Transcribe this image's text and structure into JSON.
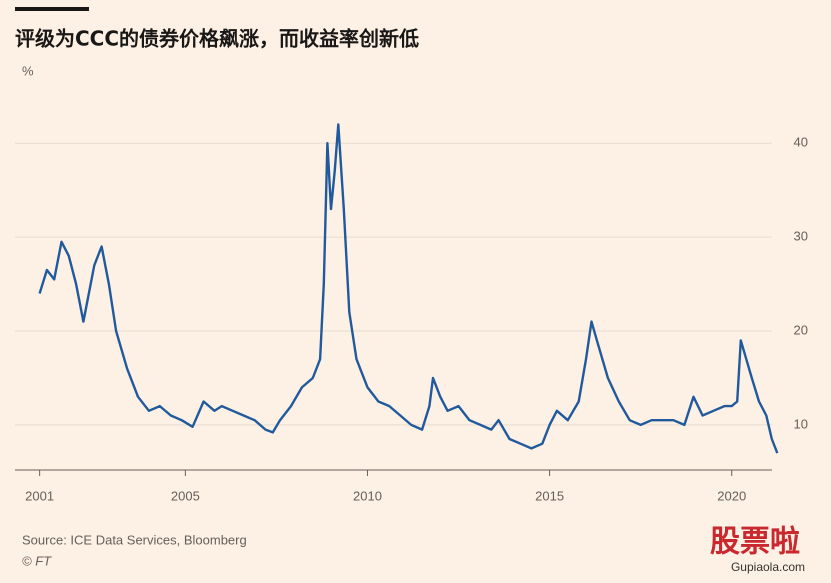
{
  "chart_data": {
    "type": "line",
    "title": "评级为CCC的债券价格飙涨，而收益率创新低",
    "y_unit": "%",
    "source": "Source: ICE Data Services, Bloomberg",
    "credit": "© FT",
    "watermark": {
      "logo": "股票啦",
      "url": "Gupiaola.com"
    },
    "xlim": [
      2000.9,
      2021.6
    ],
    "xticks": [
      2001,
      2005,
      2010,
      2015,
      2020
    ],
    "ylim": [
      5.2,
      46.2
    ],
    "yticks": [
      10,
      20,
      30,
      40
    ],
    "grid": true,
    "x": [
      2001.0,
      2001.2,
      2001.4,
      2001.6,
      2001.8,
      2002.0,
      2002.2,
      2002.5,
      2002.7,
      2002.9,
      2003.1,
      2003.4,
      2003.7,
      2004.0,
      2004.3,
      2004.6,
      2004.9,
      2005.2,
      2005.5,
      2005.8,
      2006.0,
      2006.3,
      2006.6,
      2006.9,
      2007.2,
      2007.4,
      2007.6,
      2007.9,
      2008.2,
      2008.5,
      2008.7,
      2008.8,
      2008.9,
      2009.0,
      2009.1,
      2009.2,
      2009.35,
      2009.5,
      2009.7,
      2010.0,
      2010.3,
      2010.6,
      2010.9,
      2011.2,
      2011.5,
      2011.7,
      2011.8,
      2012.0,
      2012.2,
      2012.5,
      2012.8,
      2013.1,
      2013.4,
      2013.6,
      2013.9,
      2014.2,
      2014.5,
      2014.8,
      2015.0,
      2015.2,
      2015.5,
      2015.8,
      2016.0,
      2016.15,
      2016.3,
      2016.6,
      2016.9,
      2017.2,
      2017.5,
      2017.8,
      2018.1,
      2018.4,
      2018.7,
      2018.95,
      2019.2,
      2019.5,
      2019.8,
      2020.0,
      2020.15,
      2020.25,
      2020.4,
      2020.55,
      2020.75,
      2020.95,
      2021.1,
      2021.25
    ],
    "series": [
      {
        "color": "#215a9c",
        "values": [
          24,
          26.5,
          25.5,
          29.5,
          28,
          25,
          21,
          27,
          29,
          25,
          20,
          16,
          13,
          11.5,
          12,
          11,
          10.5,
          9.8,
          12.5,
          11.5,
          12,
          11.5,
          11,
          10.5,
          9.5,
          9.2,
          10.5,
          12,
          14,
          15,
          17,
          25,
          40,
          33,
          37,
          42,
          33,
          22,
          17,
          14,
          12.5,
          12,
          11,
          10,
          9.5,
          12,
          15,
          13,
          11.5,
          12,
          10.5,
          10,
          9.5,
          10.5,
          8.5,
          8,
          7.5,
          8,
          10,
          11.5,
          10.5,
          12.5,
          17,
          21,
          19,
          15,
          12.5,
          10.5,
          10,
          10.5,
          10.5,
          10.5,
          10,
          13,
          11,
          11.5,
          12,
          12,
          12.5,
          19,
          17,
          15,
          12.5,
          11,
          8.5,
          7
        ]
      }
    ]
  }
}
